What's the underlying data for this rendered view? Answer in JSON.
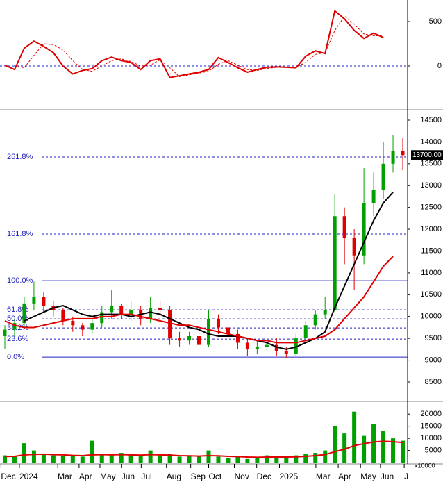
{
  "chart_data": [
    {
      "type": "oscillator",
      "x": [
        1,
        3,
        5,
        7,
        9,
        11,
        13,
        15,
        17,
        19,
        21,
        23,
        25,
        27,
        29,
        31,
        33,
        35,
        37,
        39,
        41,
        43,
        45,
        47,
        49,
        51,
        53,
        55,
        57,
        59,
        61,
        63,
        65,
        67,
        69,
        71,
        73,
        75,
        77,
        79,
        81,
        83
      ],
      "xlim": [
        0,
        84
      ],
      "ylim": [
        -492,
        742
      ],
      "yticks": [
        0,
        500
      ],
      "hlines": [
        0
      ],
      "series": [
        {
          "color": "#e00000",
          "style": "solid",
          "values": [
            10,
            -40,
            200,
            280,
            220,
            150,
            0,
            -90,
            -50,
            -30,
            60,
            100,
            60,
            40,
            -40,
            60,
            80,
            -130,
            -110,
            -90,
            -70,
            -40,
            95,
            40,
            -20,
            -70,
            -40,
            -15,
            -10,
            -15,
            -20,
            110,
            170,
            140,
            620,
            530,
            400,
            310,
            370,
            320,
            null,
            null
          ]
        },
        {
          "color": "#e00000",
          "style": "dashed",
          "values": [
            null,
            0,
            -20,
            120,
            250,
            240,
            180,
            60,
            -40,
            -60,
            0,
            60,
            80,
            50,
            0,
            10,
            70,
            -20,
            -120,
            -100,
            -80,
            -60,
            20,
            60,
            10,
            -40,
            -50,
            -30,
            -15,
            -12,
            -15,
            40,
            130,
            150,
            400,
            560,
            470,
            360,
            340,
            340,
            null,
            null
          ]
        }
      ]
    },
    {
      "type": "candlestick",
      "x": [
        1,
        3,
        5,
        7,
        9,
        11,
        13,
        15,
        17,
        19,
        21,
        23,
        25,
        27,
        29,
        31,
        33,
        35,
        37,
        39,
        41,
        43,
        45,
        47,
        49,
        51,
        53,
        55,
        57,
        59,
        61,
        63,
        65,
        67,
        69,
        71,
        73,
        75,
        77,
        79,
        81,
        83
      ],
      "xlim": [
        0,
        84
      ],
      "ylim": [
        8054,
        14739
      ],
      "yticks": [
        8500,
        9000,
        9500,
        10000,
        10500,
        11000,
        11500,
        12000,
        12500,
        13000,
        13500,
        14000,
        14500
      ],
      "open": [
        9550,
        9700,
        9850,
        10300,
        10450,
        10250,
        10150,
        9900,
        9800,
        9700,
        9850,
        10100,
        10250,
        10050,
        10150,
        9950,
        10200,
        10150,
        9500,
        9450,
        9550,
        9350,
        9950,
        9750,
        9600,
        9400,
        9250,
        9300,
        9350,
        9200,
        9150,
        9500,
        9800,
        10050,
        10150,
        12300,
        11800,
        11400,
        12600,
        12900,
        13500,
        13800
      ],
      "high": [
        9800,
        9950,
        10450,
        10800,
        10550,
        10350,
        10200,
        10000,
        9850,
        9950,
        10250,
        10600,
        10300,
        10350,
        10250,
        10450,
        10350,
        10250,
        9650,
        9650,
        9650,
        10150,
        10050,
        9800,
        9700,
        9500,
        9450,
        9450,
        9500,
        9300,
        9600,
        9900,
        10150,
        10450,
        12800,
        12500,
        12000,
        13400,
        13300,
        14000,
        14150,
        14100
      ],
      "low": [
        9250,
        9550,
        9750,
        10150,
        10100,
        10000,
        9800,
        9650,
        9550,
        9600,
        9750,
        9950,
        9950,
        9900,
        9800,
        9850,
        10000,
        9350,
        9300,
        9350,
        9200,
        9300,
        9600,
        9500,
        9250,
        9100,
        9150,
        9200,
        9100,
        9050,
        9100,
        9400,
        9700,
        9950,
        10100,
        11200,
        10600,
        11200,
        12300,
        12700,
        13300,
        13350
      ],
      "close": [
        9700,
        9850,
        10300,
        10450,
        10250,
        10150,
        9900,
        9800,
        9700,
        9850,
        10100,
        10250,
        10050,
        10150,
        9950,
        10200,
        10150,
        9500,
        9450,
        9550,
        9350,
        9950,
        9750,
        9600,
        9400,
        9250,
        9300,
        9350,
        9200,
        9150,
        9500,
        9800,
        10050,
        10150,
        12300,
        11800,
        11400,
        12600,
        12900,
        13500,
        13800,
        13700
      ],
      "up_color": "#00a000",
      "down_color": "#e00000",
      "series": [
        {
          "color": "#000000",
          "values": [
            null,
            null,
            9900,
            10000,
            10100,
            10200,
            10250,
            10150,
            10050,
            10000,
            10050,
            10050,
            10050,
            10000,
            10050,
            10100,
            10050,
            9950,
            9850,
            9750,
            9700,
            9600,
            9550,
            9550,
            9550,
            9500,
            9450,
            9400,
            9300,
            9250,
            9300,
            9400,
            9500,
            9650,
            10200,
            10700,
            11200,
            11700,
            12200,
            12600,
            12850,
            null
          ]
        },
        {
          "color": "#e00000",
          "values": [
            9900,
            9800,
            9750,
            9750,
            9800,
            9850,
            9900,
            9950,
            9950,
            9950,
            10000,
            10000,
            10050,
            10050,
            10000,
            9950,
            9900,
            9850,
            9800,
            9800,
            9750,
            9700,
            9650,
            9600,
            9550,
            9500,
            9450,
            9450,
            9400,
            9400,
            9400,
            9450,
            9500,
            9550,
            9700,
            9950,
            10200,
            10450,
            10800,
            11150,
            11380,
            null
          ]
        }
      ],
      "levels": [
        {
          "label": "261.8%",
          "value": 13656,
          "style": "dashed"
        },
        {
          "label": "161.8%",
          "value": 11889,
          "style": "dashed"
        },
        {
          "label": "100.0%",
          "value": 10822,
          "style": "solid"
        },
        {
          "label": "61.8%",
          "value": 10153,
          "style": "dashed"
        },
        {
          "label": "50.0%",
          "value": 9946,
          "style": "dashed"
        },
        {
          "label": "38.2%",
          "value": 9739,
          "style": "dashed"
        },
        {
          "label": "23.6%",
          "value": 9484,
          "style": "dashed"
        },
        {
          "label": "0.0%",
          "value": 9070,
          "style": "solid"
        }
      ],
      "last_price": 13700,
      "last_price_label": "13700.00"
    },
    {
      "type": "volume",
      "x": [
        1,
        3,
        5,
        7,
        9,
        11,
        13,
        15,
        17,
        19,
        21,
        23,
        25,
        27,
        29,
        31,
        33,
        35,
        37,
        39,
        41,
        43,
        45,
        47,
        49,
        51,
        53,
        55,
        57,
        59,
        61,
        63,
        65,
        67,
        69,
        71,
        73,
        75,
        77,
        79,
        81,
        83
      ],
      "xlim": [
        0,
        84
      ],
      "ylim": [
        -550,
        25200
      ],
      "yticks": [
        5000,
        10000,
        15000,
        20000
      ],
      "unit": "x10000",
      "color": "#00a000",
      "values": [
        3000,
        2500,
        8000,
        5000,
        3500,
        3000,
        2800,
        3000,
        2500,
        9000,
        3500,
        3000,
        4000,
        3500,
        3000,
        5000,
        3000,
        3500,
        2500,
        3000,
        2500,
        5000,
        2500,
        2000,
        2500,
        1500,
        2000,
        3000,
        2500,
        2500,
        3000,
        3500,
        4000,
        5000,
        15000,
        12000,
        21000,
        11000,
        16000,
        13000,
        10000,
        9000
      ],
      "series": [
        {
          "color": "#e00000",
          "values": [
            2500,
            2600,
            3200,
            3400,
            3500,
            3300,
            3200,
            3000,
            2900,
            3200,
            3300,
            3200,
            3300,
            3200,
            3100,
            3300,
            3200,
            3100,
            2900,
            2800,
            2700,
            2900,
            2800,
            2600,
            2500,
            2300,
            2200,
            2300,
            2300,
            2300,
            2400,
            2600,
            2900,
            3300,
            4500,
            5500,
            7000,
            7800,
            8500,
            8800,
            8600,
            8300
          ]
        }
      ],
      "xticks": [
        {
          "value": 0.2,
          "label": "Dec"
        },
        {
          "value": 4,
          "label": "2024"
        },
        {
          "value": 11.9,
          "label": "Mar"
        },
        {
          "value": 16.3,
          "label": "Apr"
        },
        {
          "value": 20.6,
          "label": "May"
        },
        {
          "value": 25,
          "label": "Jun"
        },
        {
          "value": 29.1,
          "label": "Jul"
        },
        {
          "value": 34.3,
          "label": "Aug"
        },
        {
          "value": 39.3,
          "label": "Sep"
        },
        {
          "value": 43,
          "label": "Oct"
        },
        {
          "value": 48.3,
          "label": "Nov"
        },
        {
          "value": 52.9,
          "label": "Dec"
        },
        {
          "value": 57.6,
          "label": "2025"
        },
        {
          "value": 65.1,
          "label": "Mar"
        },
        {
          "value": 69.7,
          "label": "Apr"
        },
        {
          "value": 74.3,
          "label": "May"
        },
        {
          "value": 78.4,
          "label": "Jun"
        },
        {
          "value": 83.3,
          "label": "J"
        }
      ]
    }
  ]
}
